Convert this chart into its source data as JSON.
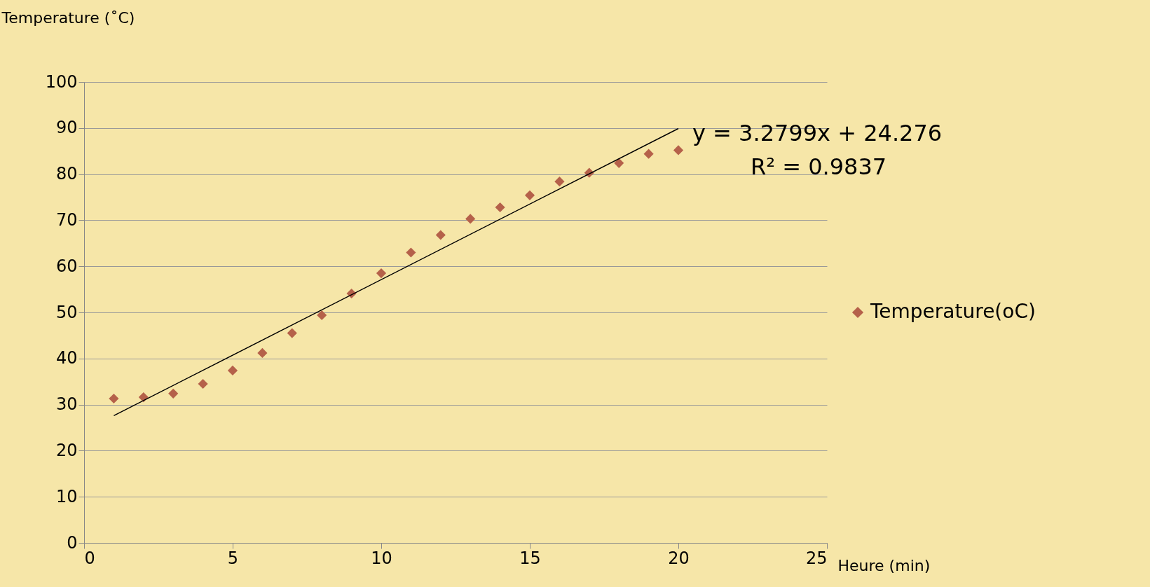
{
  "chart_data": {
    "type": "scatter",
    "xlabel": "Heure (min)",
    "ylabel": "Temperature (˚C)",
    "x": [
      1,
      2,
      3,
      4,
      5,
      6,
      7,
      8,
      9,
      10,
      11,
      12,
      13,
      14,
      15,
      16,
      17,
      18,
      19,
      20
    ],
    "series": [
      {
        "name": "Temperature(oC)",
        "color": "#b5614a",
        "marker": "diamond",
        "values": [
          31.3,
          31.6,
          32.4,
          34.5,
          37.4,
          41.2,
          45.5,
          49.4,
          54.1,
          58.5,
          63.0,
          66.8,
          70.3,
          72.8,
          75.4,
          78.4,
          80.3,
          82.4,
          84.4,
          85.2
        ]
      },
      {
        "type": "line",
        "color": "#000000",
        "x": [
          1,
          20
        ],
        "values": [
          27.6,
          89.9
        ]
      }
    ],
    "annotations": [
      "y = 3.2799x + 24.276",
      "R² = 0.9837"
    ],
    "xlim": [
      0,
      25
    ],
    "xticks": [
      0,
      5,
      10,
      15,
      20,
      25
    ],
    "ylim": [
      0,
      100
    ],
    "yticks": [
      0,
      10,
      20,
      30,
      40,
      50,
      60,
      70,
      80,
      90,
      100
    ],
    "grid": "y",
    "legend": "right"
  }
}
